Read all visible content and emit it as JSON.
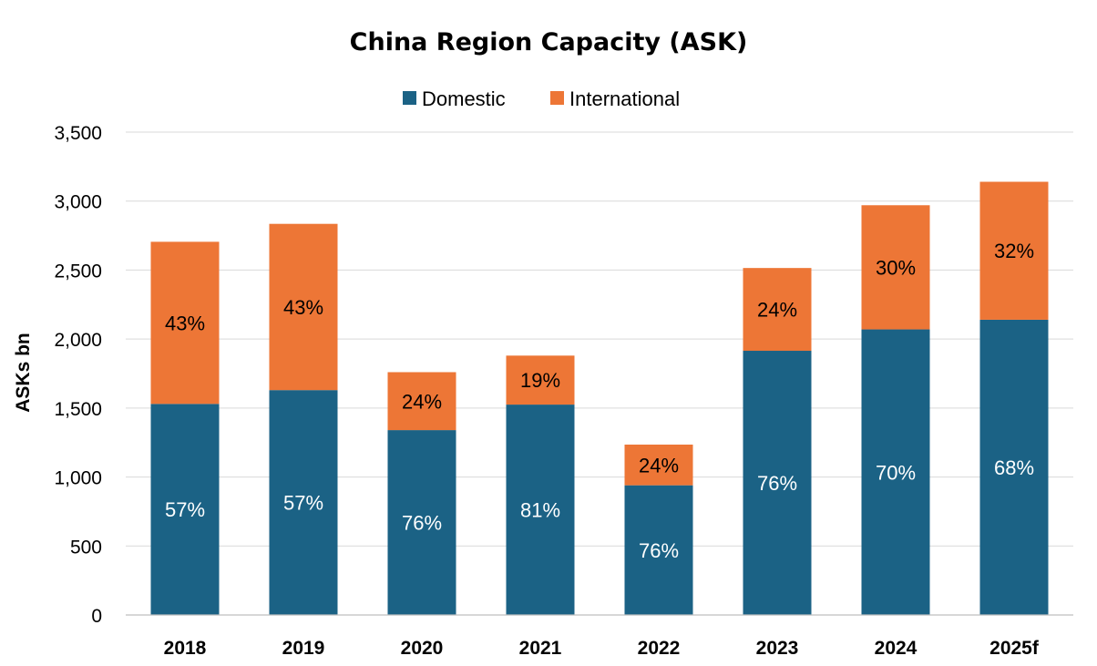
{
  "chart_data": {
    "type": "bar",
    "stacked": true,
    "title": "China Region Capacity (ASK)",
    "xlabel": "",
    "ylabel": "ASKs bn",
    "ylim": [
      0,
      3500
    ],
    "yticks": [
      0,
      500,
      1000,
      1500,
      2000,
      2500,
      3000,
      3500
    ],
    "ytick_labels": [
      "0",
      "500",
      "1,000",
      "1,500",
      "2,000",
      "2,500",
      "3,000",
      "3,500"
    ],
    "grid": true,
    "legend_position": "top-center",
    "categories": [
      "2018",
      "2019",
      "2020",
      "2021",
      "2022",
      "2023",
      "2024",
      "2025f"
    ],
    "series": [
      {
        "name": "Domestic",
        "color": "#1b6285",
        "values": [
          1530,
          1630,
          1340,
          1525,
          940,
          1915,
          2070,
          2140
        ],
        "labels": [
          "57%",
          "57%",
          "76%",
          "81%",
          "76%",
          "76%",
          "70%",
          "68%"
        ]
      },
      {
        "name": "International",
        "color": "#ed7636",
        "values": [
          1175,
          1205,
          420,
          355,
          295,
          600,
          900,
          1000
        ],
        "labels": [
          "43%",
          "43%",
          "24%",
          "19%",
          "24%",
          "24%",
          "30%",
          "32%"
        ]
      }
    ]
  }
}
